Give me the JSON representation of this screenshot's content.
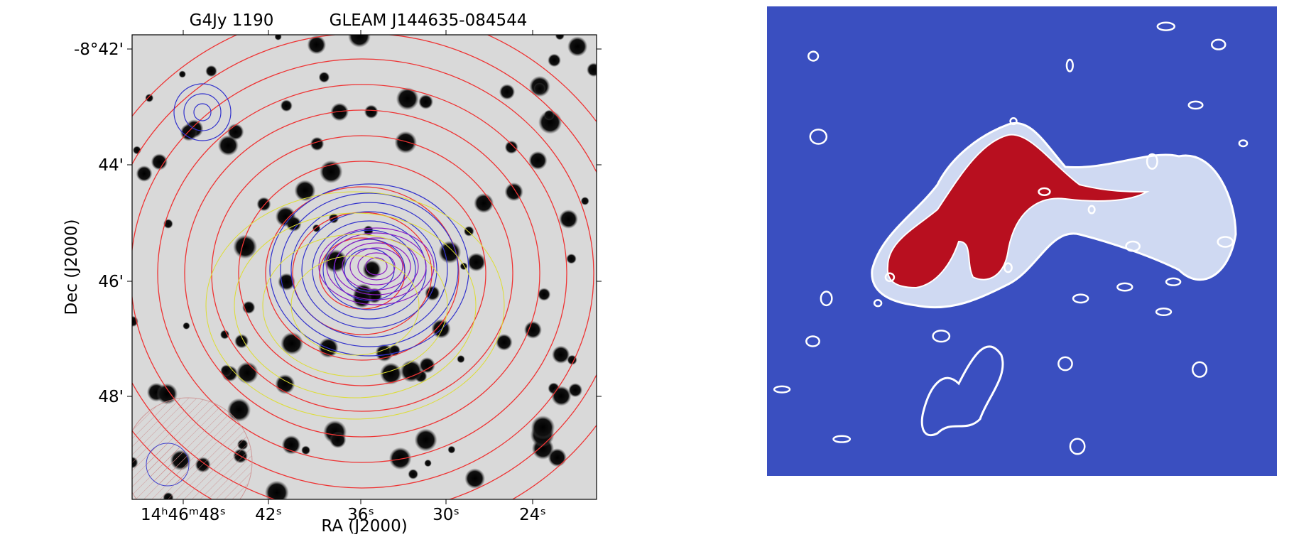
{
  "left_panel": {
    "title": [
      "G4Jy 1190",
      "GLEAM J144635-084544"
    ],
    "x_label": "RA (J2000)",
    "y_label": "Dec (J2000)",
    "x_ticks": [
      "14ʰ46ᵐ48ˢ",
      "42ˢ",
      "36ˢ",
      "30ˢ",
      "24ˢ"
    ],
    "y_ticks": [
      "-8°42'",
      "44'",
      "46'",
      "48'"
    ]
  }
}
